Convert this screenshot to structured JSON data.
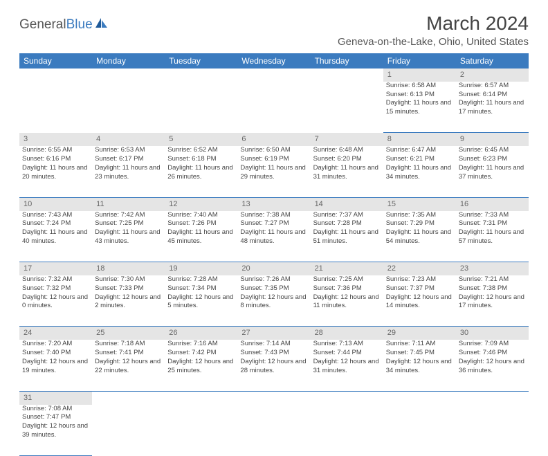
{
  "logo": {
    "part1": "General",
    "part2": "Blue"
  },
  "title": "March 2024",
  "location": "Geneva-on-the-Lake, Ohio, United States",
  "colors": {
    "header_bg": "#3b7bbf",
    "header_text": "#ffffff",
    "daynum_bg": "#e5e5e5",
    "cell_border": "#3b7bbf",
    "body_text": "#444444",
    "logo_blue": "#3b7bbf",
    "logo_gray": "#555555"
  },
  "weekdays": [
    "Sunday",
    "Monday",
    "Tuesday",
    "Wednesday",
    "Thursday",
    "Friday",
    "Saturday"
  ],
  "weeks": [
    [
      null,
      null,
      null,
      null,
      null,
      {
        "n": "1",
        "sr": "6:58 AM",
        "ss": "6:13 PM",
        "dl": "11 hours and 15 minutes."
      },
      {
        "n": "2",
        "sr": "6:57 AM",
        "ss": "6:14 PM",
        "dl": "11 hours and 17 minutes."
      }
    ],
    [
      {
        "n": "3",
        "sr": "6:55 AM",
        "ss": "6:16 PM",
        "dl": "11 hours and 20 minutes."
      },
      {
        "n": "4",
        "sr": "6:53 AM",
        "ss": "6:17 PM",
        "dl": "11 hours and 23 minutes."
      },
      {
        "n": "5",
        "sr": "6:52 AM",
        "ss": "6:18 PM",
        "dl": "11 hours and 26 minutes."
      },
      {
        "n": "6",
        "sr": "6:50 AM",
        "ss": "6:19 PM",
        "dl": "11 hours and 29 minutes."
      },
      {
        "n": "7",
        "sr": "6:48 AM",
        "ss": "6:20 PM",
        "dl": "11 hours and 31 minutes."
      },
      {
        "n": "8",
        "sr": "6:47 AM",
        "ss": "6:21 PM",
        "dl": "11 hours and 34 minutes."
      },
      {
        "n": "9",
        "sr": "6:45 AM",
        "ss": "6:23 PM",
        "dl": "11 hours and 37 minutes."
      }
    ],
    [
      {
        "n": "10",
        "sr": "7:43 AM",
        "ss": "7:24 PM",
        "dl": "11 hours and 40 minutes."
      },
      {
        "n": "11",
        "sr": "7:42 AM",
        "ss": "7:25 PM",
        "dl": "11 hours and 43 minutes."
      },
      {
        "n": "12",
        "sr": "7:40 AM",
        "ss": "7:26 PM",
        "dl": "11 hours and 45 minutes."
      },
      {
        "n": "13",
        "sr": "7:38 AM",
        "ss": "7:27 PM",
        "dl": "11 hours and 48 minutes."
      },
      {
        "n": "14",
        "sr": "7:37 AM",
        "ss": "7:28 PM",
        "dl": "11 hours and 51 minutes."
      },
      {
        "n": "15",
        "sr": "7:35 AM",
        "ss": "7:29 PM",
        "dl": "11 hours and 54 minutes."
      },
      {
        "n": "16",
        "sr": "7:33 AM",
        "ss": "7:31 PM",
        "dl": "11 hours and 57 minutes."
      }
    ],
    [
      {
        "n": "17",
        "sr": "7:32 AM",
        "ss": "7:32 PM",
        "dl": "12 hours and 0 minutes."
      },
      {
        "n": "18",
        "sr": "7:30 AM",
        "ss": "7:33 PM",
        "dl": "12 hours and 2 minutes."
      },
      {
        "n": "19",
        "sr": "7:28 AM",
        "ss": "7:34 PM",
        "dl": "12 hours and 5 minutes."
      },
      {
        "n": "20",
        "sr": "7:26 AM",
        "ss": "7:35 PM",
        "dl": "12 hours and 8 minutes."
      },
      {
        "n": "21",
        "sr": "7:25 AM",
        "ss": "7:36 PM",
        "dl": "12 hours and 11 minutes."
      },
      {
        "n": "22",
        "sr": "7:23 AM",
        "ss": "7:37 PM",
        "dl": "12 hours and 14 minutes."
      },
      {
        "n": "23",
        "sr": "7:21 AM",
        "ss": "7:38 PM",
        "dl": "12 hours and 17 minutes."
      }
    ],
    [
      {
        "n": "24",
        "sr": "7:20 AM",
        "ss": "7:40 PM",
        "dl": "12 hours and 19 minutes."
      },
      {
        "n": "25",
        "sr": "7:18 AM",
        "ss": "7:41 PM",
        "dl": "12 hours and 22 minutes."
      },
      {
        "n": "26",
        "sr": "7:16 AM",
        "ss": "7:42 PM",
        "dl": "12 hours and 25 minutes."
      },
      {
        "n": "27",
        "sr": "7:14 AM",
        "ss": "7:43 PM",
        "dl": "12 hours and 28 minutes."
      },
      {
        "n": "28",
        "sr": "7:13 AM",
        "ss": "7:44 PM",
        "dl": "12 hours and 31 minutes."
      },
      {
        "n": "29",
        "sr": "7:11 AM",
        "ss": "7:45 PM",
        "dl": "12 hours and 34 minutes."
      },
      {
        "n": "30",
        "sr": "7:09 AM",
        "ss": "7:46 PM",
        "dl": "12 hours and 36 minutes."
      }
    ],
    [
      {
        "n": "31",
        "sr": "7:08 AM",
        "ss": "7:47 PM",
        "dl": "12 hours and 39 minutes."
      },
      null,
      null,
      null,
      null,
      null,
      null
    ]
  ],
  "labels": {
    "sunrise": "Sunrise: ",
    "sunset": "Sunset: ",
    "daylight": "Daylight: "
  }
}
